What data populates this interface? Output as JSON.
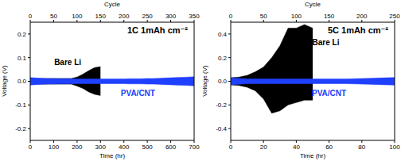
{
  "chart_data": [
    {
      "type": "area",
      "title": "1C 1mAh cm⁻²",
      "x_label": "Time (hr)",
      "x2_label": "Cycle",
      "y_label": "Voltage (V)",
      "xlim": [
        0,
        700
      ],
      "xticks": [
        0,
        100,
        200,
        300,
        400,
        500,
        600,
        700
      ],
      "x2lim": [
        0,
        350
      ],
      "x2ticks": [
        0,
        50,
        100,
        150,
        200,
        250,
        300,
        350
      ],
      "ylim": [
        -0.25,
        0.25
      ],
      "yticks": [
        -0.2,
        -0.1,
        {
          "value": 0,
          "label": "0.0"
        },
        0.1,
        0.2
      ],
      "x": [
        0,
        25,
        50,
        75,
        100,
        125,
        150,
        175,
        200,
        225,
        250,
        275,
        300,
        325,
        350,
        375,
        400,
        425,
        450,
        475,
        500,
        525,
        550,
        575,
        600,
        625,
        650,
        675,
        700
      ],
      "series": [
        {
          "name": "Bare Li",
          "color": "#000000",
          "label_x": 160,
          "label_y": 0.08,
          "upper": [
            0.012,
            0.012,
            0.012,
            0.012,
            0.012,
            0.012,
            0.012,
            0.012,
            0.018,
            0.03,
            0.045,
            0.058,
            0.062,
            null,
            null,
            null,
            null,
            null,
            null,
            null,
            null,
            null,
            null,
            null,
            null,
            null,
            null,
            null,
            null
          ],
          "lower": [
            -0.012,
            -0.012,
            -0.012,
            -0.012,
            -0.012,
            -0.012,
            -0.012,
            -0.012,
            -0.02,
            -0.03,
            -0.045,
            -0.055,
            -0.06,
            null,
            null,
            null,
            null,
            null,
            null,
            null,
            null,
            null,
            null,
            null,
            null,
            null,
            null,
            null,
            null
          ]
        },
        {
          "name": "PVA/CNT",
          "color": "#2040ff",
          "label_x": 460,
          "label_y": -0.05,
          "upper": [
            0.016,
            0.014,
            0.013,
            0.012,
            0.012,
            0.011,
            0.011,
            0.011,
            0.01,
            0.01,
            0.01,
            0.01,
            0.01,
            0.01,
            0.01,
            0.01,
            0.01,
            0.011,
            0.011,
            0.011,
            0.012,
            0.012,
            0.013,
            0.014,
            0.015,
            0.016,
            0.017,
            0.018,
            0.019
          ],
          "lower": [
            -0.016,
            -0.014,
            -0.013,
            -0.012,
            -0.012,
            -0.011,
            -0.011,
            -0.011,
            -0.01,
            -0.01,
            -0.01,
            -0.01,
            -0.01,
            -0.01,
            -0.01,
            -0.01,
            -0.01,
            -0.011,
            -0.011,
            -0.011,
            -0.012,
            -0.012,
            -0.013,
            -0.014,
            -0.015,
            -0.016,
            -0.017,
            -0.018,
            -0.019
          ]
        }
      ]
    },
    {
      "type": "area",
      "title": "5C 1mAh cm⁻²",
      "x_label": "Time (hr)",
      "x2_label": "Cycle",
      "y_label": "Voltage (V)",
      "xlim": [
        0,
        100
      ],
      "xticks": [
        0,
        20,
        40,
        60,
        80,
        100
      ],
      "x2lim": [
        0,
        250
      ],
      "x2ticks": [
        0,
        50,
        100,
        150,
        200,
        250
      ],
      "ylim": [
        -0.5,
        0.5
      ],
      "yticks": [
        -0.4,
        -0.2,
        {
          "value": 0,
          "label": "0.0"
        },
        0.2,
        0.4
      ],
      "x": [
        0,
        5,
        10,
        15,
        20,
        25,
        30,
        35,
        40,
        45,
        50,
        55,
        60,
        65,
        70,
        75,
        80,
        85,
        90,
        95,
        100
      ],
      "series": [
        {
          "name": "Bare Li",
          "color": "#000000",
          "label_x": 58,
          "label_y": 0.33,
          "upper": [
            0.03,
            0.035,
            0.05,
            0.08,
            0.12,
            0.2,
            0.3,
            0.45,
            0.45,
            0.48,
            0.45,
            null,
            null,
            null,
            null,
            null,
            null,
            null,
            null,
            null,
            null
          ],
          "lower": [
            -0.03,
            -0.035,
            -0.05,
            -0.08,
            -0.15,
            -0.27,
            -0.25,
            -0.2,
            -0.18,
            -0.16,
            -0.16,
            null,
            null,
            null,
            null,
            null,
            null,
            null,
            null,
            null,
            null
          ]
        },
        {
          "name": "PVA/CNT",
          "color": "#2040ff",
          "label_x": 60,
          "label_y": -0.1,
          "upper": [
            0.03,
            0.025,
            0.02,
            0.02,
            0.02,
            0.02,
            0.02,
            0.02,
            0.02,
            0.02,
            0.02,
            0.02,
            0.02,
            0.02,
            0.02,
            0.022,
            0.024,
            0.026,
            0.028,
            0.03,
            0.032
          ],
          "lower": [
            -0.03,
            -0.025,
            -0.02,
            -0.02,
            -0.02,
            -0.02,
            -0.02,
            -0.02,
            -0.02,
            -0.02,
            -0.02,
            -0.02,
            -0.02,
            -0.02,
            -0.02,
            -0.022,
            -0.024,
            -0.026,
            -0.028,
            -0.03,
            -0.032
          ]
        }
      ]
    }
  ]
}
